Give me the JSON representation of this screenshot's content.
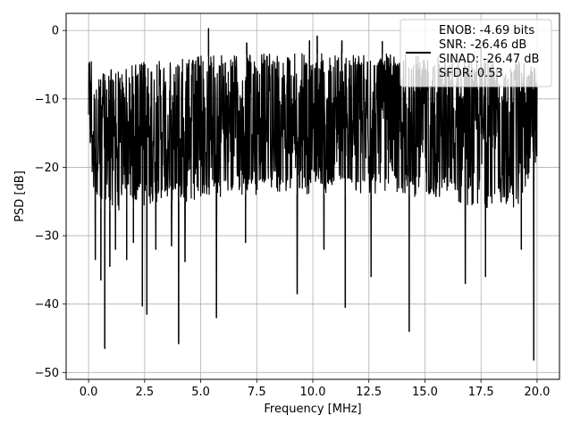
{
  "chart_data": {
    "type": "line",
    "xlabel": "Frequency [MHz]",
    "ylabel": "PSD [dB]",
    "xlim": [
      -1.0,
      21.0
    ],
    "ylim": [
      -51.0,
      2.5
    ],
    "xticks": [
      0.0,
      2.5,
      5.0,
      7.5,
      10.0,
      12.5,
      15.0,
      17.5,
      20.0
    ],
    "xtick_labels": [
      "0.0",
      "2.5",
      "5.0",
      "7.5",
      "10.0",
      "12.5",
      "15.0",
      "17.5",
      "20.0"
    ],
    "yticks": [
      0,
      -10,
      -20,
      -30,
      -40,
      -50
    ],
    "ytick_labels": [
      "0",
      "−10",
      "−20",
      "−30",
      "−40",
      "−50"
    ],
    "grid": true,
    "legend_placement": "upper-right",
    "legend": {
      "lines": [
        "ENOB: -4.69 bits",
        "SNR: -26.46 dB",
        "SINAD: -26.47 dB",
        "SFDR: 0.53"
      ]
    },
    "series": [
      {
        "color": "#000000",
        "envelope": {
          "x": [
            0.0,
            0.05,
            0.1,
            0.2,
            0.3,
            0.5,
            1.0,
            2.0,
            3.0,
            4.0,
            5.0,
            6.0,
            7.0,
            8.0,
            9.0,
            10.0,
            11.0,
            12.0,
            13.0,
            14.0,
            15.0,
            16.0,
            17.0,
            18.0,
            19.0,
            20.0
          ],
          "upper": [
            -5.0,
            -0.5,
            -3.0,
            -5.5,
            -6.5,
            -6.0,
            -5.5,
            -4.8,
            -4.3,
            -4.0,
            -3.7,
            -3.6,
            -3.5,
            -3.4,
            -3.4,
            -3.4,
            -3.4,
            -3.4,
            -3.4,
            -3.5,
            -3.6,
            -3.7,
            -3.8,
            -4.0,
            -4.3,
            -5.0
          ],
          "lower": [
            -16.0,
            -20.0,
            -22.0,
            -24.0,
            -25.0,
            -26.0,
            -26.5,
            -26.0,
            -25.5,
            -25.0,
            -25.0,
            -24.5,
            -24.0,
            -24.0,
            -24.0,
            -24.0,
            -24.0,
            -24.0,
            -24.0,
            -24.0,
            -24.5,
            -25.0,
            -25.5,
            -26.0,
            -26.5,
            -20.0
          ]
        },
        "spikes_up": [
          {
            "x": 5.35,
            "y": 0.3
          },
          {
            "x": 10.2,
            "y": -0.8
          },
          {
            "x": 9.85,
            "y": -1.5
          },
          {
            "x": 7.05,
            "y": -1.8
          },
          {
            "x": 11.3,
            "y": -1.5
          },
          {
            "x": 17.5,
            "y": -2.1
          },
          {
            "x": 13.1,
            "y": -1.6
          }
        ],
        "spikes_down": [
          {
            "x": 0.3,
            "y": -33.5
          },
          {
            "x": 0.55,
            "y": -36.5
          },
          {
            "x": 0.72,
            "y": -46.5
          },
          {
            "x": 0.95,
            "y": -34.5
          },
          {
            "x": 1.2,
            "y": -32.0
          },
          {
            "x": 1.7,
            "y": -33.5
          },
          {
            "x": 2.0,
            "y": -31.0
          },
          {
            "x": 2.4,
            "y": -40.3
          },
          {
            "x": 2.6,
            "y": -41.5
          },
          {
            "x": 3.0,
            "y": -32.0
          },
          {
            "x": 3.7,
            "y": -31.5
          },
          {
            "x": 4.02,
            "y": -45.8
          },
          {
            "x": 4.3,
            "y": -33.8
          },
          {
            "x": 5.7,
            "y": -42.0
          },
          {
            "x": 7.0,
            "y": -31.0
          },
          {
            "x": 9.3,
            "y": -38.5
          },
          {
            "x": 10.5,
            "y": -32.0
          },
          {
            "x": 11.45,
            "y": -40.5
          },
          {
            "x": 12.6,
            "y": -36.0
          },
          {
            "x": 14.3,
            "y": -44.0
          },
          {
            "x": 16.8,
            "y": -37.0
          },
          {
            "x": 17.7,
            "y": -36.0
          },
          {
            "x": 19.3,
            "y": -32.0
          },
          {
            "x": 19.85,
            "y": -48.2
          }
        ]
      }
    ]
  }
}
